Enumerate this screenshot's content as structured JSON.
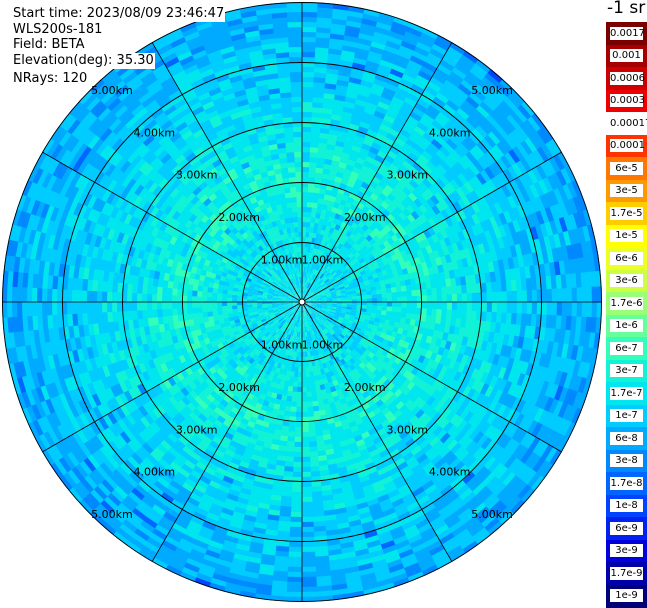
{
  "info": {
    "start_time": "Start time: 2023/08/09 23:46:47",
    "instrument": "WLS200s-181",
    "field": "Field: BETA",
    "elevation": "Elevation(deg): 35.30",
    "nrays": "NRays: 120"
  },
  "chart_data": {
    "type": "heatmap",
    "projection": "polar",
    "title": "",
    "n_rays": 120,
    "range_rings_km": [
      1.0,
      2.0,
      3.0,
      4.0,
      5.0
    ],
    "ring_labels": [
      "1.00km",
      "2.00km",
      "3.00km",
      "4.00km",
      "5.00km"
    ],
    "max_range_km": 5.0,
    "radial_line_angles_deg": [
      0,
      30,
      60,
      90,
      120,
      150,
      180,
      210,
      240,
      270,
      300,
      330
    ],
    "unit_label": "-1 sr",
    "colorbar": {
      "labels": [
        "0.0017",
        "0.001",
        "0.0006",
        "0.0003",
        "0.00017",
        "0.0001",
        "6e-5",
        "3e-5",
        "1.7e-5",
        "1e-5",
        "6e-6",
        "3e-6",
        "1.7e-6",
        "1e-6",
        "6e-7",
        "3e-7",
        "1.7e-7",
        "1e-7",
        "6e-8",
        "3e-8",
        "1.7e-8",
        "1e-8",
        "6e-9",
        "3e-9",
        "1.7e-9",
        "1e-9"
      ],
      "colors": [
        "#7a0000",
        "#a40000",
        "#cc0000",
        "#ee0000",
        "#ffffff",
        "#ff3300",
        "#ff7700",
        "#ff9900",
        "#ffcc00",
        "#ffff00",
        "#eeff22",
        "#ccff44",
        "#99ff77",
        "#66ff99",
        "#33ffbb",
        "#11f2d6",
        "#00e6ee",
        "#00ccff",
        "#00aaff",
        "#0088ff",
        "#0066ff",
        "#0044ff",
        "#0022ee",
        "#0000dd",
        "#0000aa",
        "#000077"
      ]
    },
    "field_profile": [
      {
        "range_km": 0.0,
        "value": "1.7e-7"
      },
      {
        "range_km": 1.0,
        "value": "1.7e-7"
      },
      {
        "range_km": 2.0,
        "value": "3e-7"
      },
      {
        "range_km": 3.0,
        "value": "1.7e-7"
      },
      {
        "range_km": 4.0,
        "value": "1e-7"
      },
      {
        "range_km": 5.0,
        "value": "6e-8"
      }
    ]
  }
}
